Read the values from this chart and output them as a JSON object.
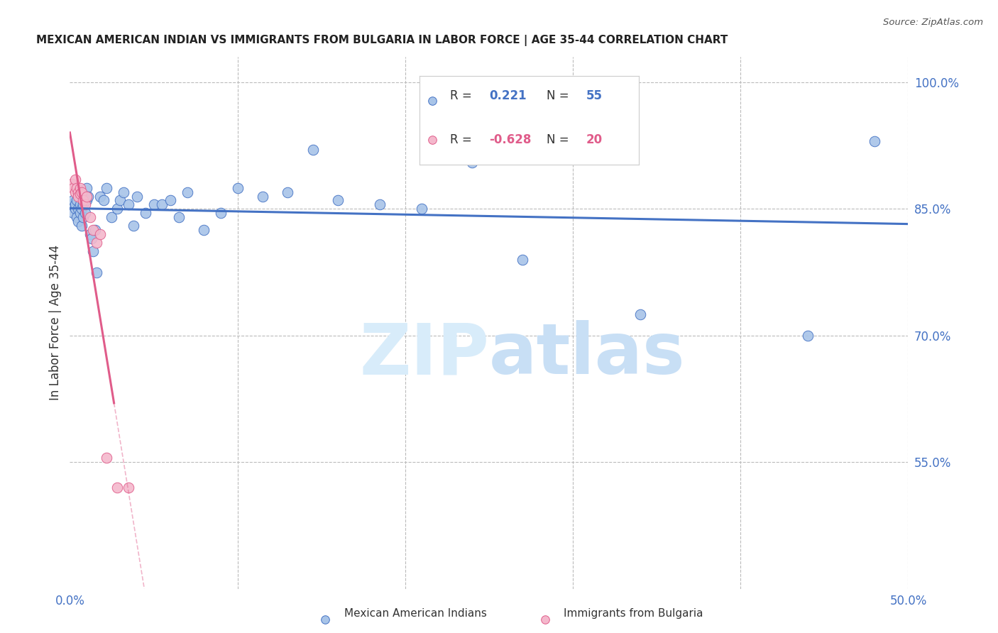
{
  "title": "MEXICAN AMERICAN INDIAN VS IMMIGRANTS FROM BULGARIA IN LABOR FORCE | AGE 35-44 CORRELATION CHART",
  "source": "Source: ZipAtlas.com",
  "ylabel": "In Labor Force | Age 35-44",
  "x_min": 0.0,
  "x_max": 0.5,
  "y_min": 0.4,
  "y_max": 1.03,
  "legend_blue_r": "0.221",
  "legend_blue_n": "55",
  "legend_pink_r": "-0.628",
  "legend_pink_n": "20",
  "legend_blue_label": "Mexican American Indians",
  "legend_pink_label": "Immigrants from Bulgaria",
  "blue_scatter_x": [
    0.001,
    0.002,
    0.002,
    0.003,
    0.003,
    0.004,
    0.004,
    0.005,
    0.005,
    0.006,
    0.006,
    0.007,
    0.007,
    0.008,
    0.008,
    0.009,
    0.01,
    0.01,
    0.011,
    0.012,
    0.013,
    0.014,
    0.015,
    0.016,
    0.018,
    0.02,
    0.022,
    0.025,
    0.028,
    0.03,
    0.032,
    0.035,
    0.038,
    0.04,
    0.045,
    0.05,
    0.055,
    0.06,
    0.065,
    0.07,
    0.08,
    0.09,
    0.1,
    0.115,
    0.13,
    0.145,
    0.16,
    0.185,
    0.21,
    0.24,
    0.27,
    0.3,
    0.34,
    0.44,
    0.48
  ],
  "blue_scatter_y": [
    0.855,
    0.86,
    0.845,
    0.85,
    0.855,
    0.84,
    0.86,
    0.835,
    0.85,
    0.845,
    0.855,
    0.83,
    0.85,
    0.84,
    0.855,
    0.845,
    0.86,
    0.875,
    0.865,
    0.82,
    0.815,
    0.8,
    0.825,
    0.775,
    0.865,
    0.86,
    0.875,
    0.84,
    0.85,
    0.86,
    0.87,
    0.855,
    0.83,
    0.865,
    0.845,
    0.855,
    0.855,
    0.86,
    0.84,
    0.87,
    0.825,
    0.845,
    0.875,
    0.865,
    0.87,
    0.92,
    0.86,
    0.855,
    0.85,
    0.905,
    0.79,
    0.925,
    0.725,
    0.7,
    0.93
  ],
  "pink_scatter_x": [
    0.001,
    0.002,
    0.003,
    0.003,
    0.004,
    0.005,
    0.005,
    0.006,
    0.006,
    0.007,
    0.008,
    0.009,
    0.01,
    0.012,
    0.014,
    0.016,
    0.018,
    0.022,
    0.028,
    0.035
  ],
  "pink_scatter_y": [
    0.88,
    0.875,
    0.885,
    0.87,
    0.875,
    0.87,
    0.865,
    0.875,
    0.868,
    0.87,
    0.86,
    0.855,
    0.865,
    0.84,
    0.825,
    0.81,
    0.82,
    0.555,
    0.52,
    0.52
  ],
  "blue_line_color": "#4472C4",
  "pink_line_color": "#E05C8A",
  "blue_scatter_color": "#A8C4E8",
  "pink_scatter_color": "#F4B8CC",
  "grid_color": "#BBBBBB",
  "axis_label_color": "#4472C4",
  "title_color": "#222222",
  "watermark_color": "#D8ECFA"
}
